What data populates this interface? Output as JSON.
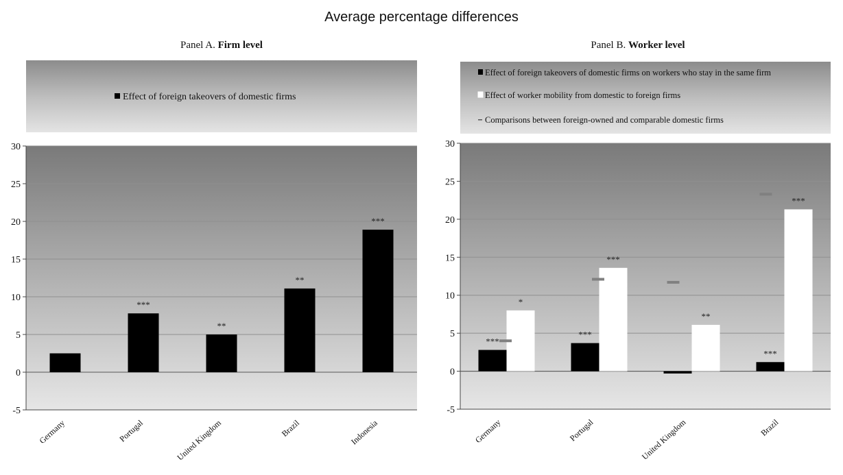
{
  "title": "Average percentage differences",
  "panels": {
    "a": {
      "prefix": "Panel A. ",
      "name": "Firm level"
    },
    "b": {
      "prefix": "Panel B. ",
      "name": "Worker level"
    }
  },
  "chart_data": [
    {
      "type": "bar",
      "categories": [
        "Germany",
        "Portugal",
        "United Kingdom",
        "Brazil",
        "Indonesia"
      ],
      "series": [
        {
          "name": "Effect of foreign takeovers of domestic firms",
          "values": [
            2.5,
            7.8,
            5.0,
            11.1,
            18.9
          ],
          "labels": [
            "",
            "***",
            "**",
            "**",
            "***"
          ],
          "color": "#000000"
        }
      ],
      "ylim": [
        -5,
        30
      ],
      "yticks": [
        -5,
        0,
        5,
        10,
        15,
        20,
        25,
        30
      ],
      "grid": true,
      "legend": "top"
    },
    {
      "type": "bar",
      "categories": [
        "Germany",
        "Portugal",
        "United Kingdom",
        "Brazil"
      ],
      "series": [
        {
          "name": "Effect of foreign takeovers of domestic firms on workers who stay in the same firm",
          "values": [
            2.8,
            3.7,
            -0.3,
            1.2
          ],
          "labels": [
            "***",
            "***",
            "",
            "***"
          ],
          "color": "#000000"
        },
        {
          "name": "Effect of worker mobility from domestic to foreign firms",
          "values": [
            8.0,
            13.6,
            6.1,
            21.3
          ],
          "labels": [
            "*",
            "***",
            "**",
            "***"
          ],
          "color": "#ffffff"
        },
        {
          "name": "Comparisons between foreign-owned and comparable domestic firms",
          "values": [
            4.0,
            12.1,
            11.7,
            23.3
          ],
          "marker": "dash",
          "color": "#808080"
        }
      ],
      "ylim": [
        -5,
        30
      ],
      "yticks": [
        -5,
        0,
        5,
        10,
        15,
        20,
        25,
        30
      ],
      "grid": true,
      "legend": "top"
    }
  ]
}
